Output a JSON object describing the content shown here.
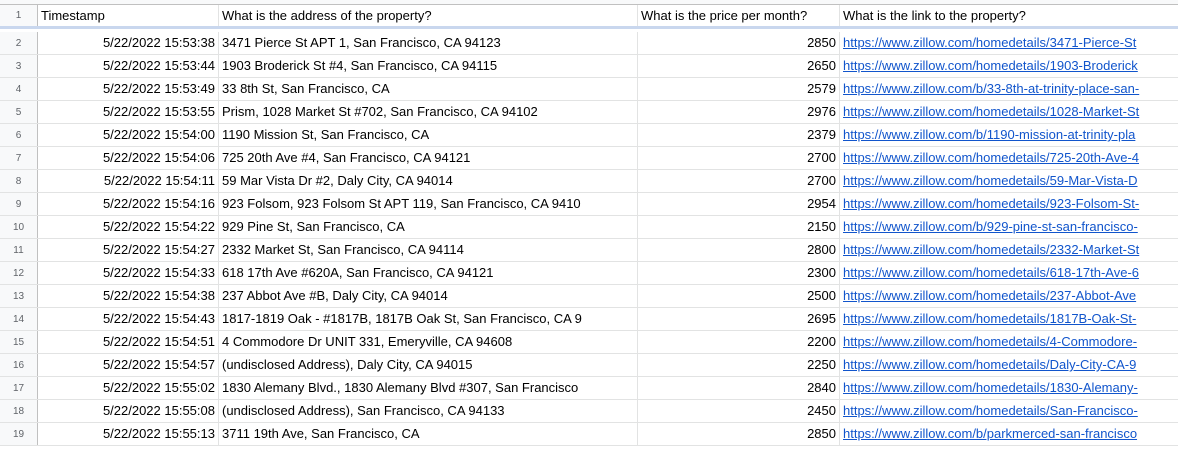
{
  "headers": [
    "Timestamp",
    "What is the address of the property?",
    "What is the price per month?",
    "What is the link to the property?"
  ],
  "header_row_number": "1",
  "rows": [
    {
      "num": "2",
      "timestamp": "5/22/2022 15:53:38",
      "address": "3471 Pierce St APT 1, San Francisco, CA 94123",
      "price": "2850",
      "link": "https://www.zillow.com/homedetails/3471-Pierce-St"
    },
    {
      "num": "3",
      "timestamp": "5/22/2022 15:53:44",
      "address": "1903 Broderick St #4, San Francisco, CA 94115",
      "price": "2650",
      "link": "https://www.zillow.com/homedetails/1903-Broderick"
    },
    {
      "num": "4",
      "timestamp": "5/22/2022 15:53:49",
      "address": "33 8th St, San Francisco, CA",
      "price": "2579",
      "link": "https://www.zillow.com/b/33-8th-at-trinity-place-san-"
    },
    {
      "num": "5",
      "timestamp": "5/22/2022 15:53:55",
      "address": "Prism, 1028 Market St #702, San Francisco, CA 94102",
      "price": "2976",
      "link": "https://www.zillow.com/homedetails/1028-Market-St"
    },
    {
      "num": "6",
      "timestamp": "5/22/2022 15:54:00",
      "address": "1190 Mission St, San Francisco, CA",
      "price": "2379",
      "link": "https://www.zillow.com/b/1190-mission-at-trinity-pla"
    },
    {
      "num": "7",
      "timestamp": "5/22/2022 15:54:06",
      "address": "725 20th Ave #4, San Francisco, CA 94121",
      "price": "2700",
      "link": "https://www.zillow.com/homedetails/725-20th-Ave-4"
    },
    {
      "num": "8",
      "timestamp": "5/22/2022 15:54:11",
      "address": "59 Mar Vista Dr #2, Daly City, CA 94014",
      "price": "2700",
      "link": "https://www.zillow.com/homedetails/59-Mar-Vista-D"
    },
    {
      "num": "9",
      "timestamp": "5/22/2022 15:54:16",
      "address": "923 Folsom, 923 Folsom St APT 119, San Francisco, CA 9410",
      "price": "2954",
      "link": "https://www.zillow.com/homedetails/923-Folsom-St-"
    },
    {
      "num": "10",
      "timestamp": "5/22/2022 15:54:22",
      "address": "929 Pine St, San Francisco, CA",
      "price": "2150",
      "link": "https://www.zillow.com/b/929-pine-st-san-francisco-"
    },
    {
      "num": "11",
      "timestamp": "5/22/2022 15:54:27",
      "address": "2332 Market St, San Francisco, CA 94114",
      "price": "2800",
      "link": "https://www.zillow.com/homedetails/2332-Market-St"
    },
    {
      "num": "12",
      "timestamp": "5/22/2022 15:54:33",
      "address": "618 17th Ave #620A, San Francisco, CA 94121",
      "price": "2300",
      "link": "https://www.zillow.com/homedetails/618-17th-Ave-6"
    },
    {
      "num": "13",
      "timestamp": "5/22/2022 15:54:38",
      "address": "237 Abbot Ave #B, Daly City, CA 94014",
      "price": "2500",
      "link": "https://www.zillow.com/homedetails/237-Abbot-Ave"
    },
    {
      "num": "14",
      "timestamp": "5/22/2022 15:54:43",
      "address": "1817-1819 Oak - #1817B, 1817B Oak St, San Francisco, CA 9",
      "price": "2695",
      "link": "https://www.zillow.com/homedetails/1817B-Oak-St-"
    },
    {
      "num": "15",
      "timestamp": "5/22/2022 15:54:51",
      "address": "4 Commodore Dr UNIT 331, Emeryville, CA 94608",
      "price": "2200",
      "link": "https://www.zillow.com/homedetails/4-Commodore-"
    },
    {
      "num": "16",
      "timestamp": "5/22/2022 15:54:57",
      "address": "(undisclosed Address), Daly City, CA 94015",
      "price": "2250",
      "link": "https://www.zillow.com/homedetails/Daly-City-CA-9"
    },
    {
      "num": "17",
      "timestamp": "5/22/2022 15:55:02",
      "address": "1830 Alemany Blvd., 1830 Alemany Blvd #307, San Francisco",
      "price": "2840",
      "link": "https://www.zillow.com/homedetails/1830-Alemany-"
    },
    {
      "num": "18",
      "timestamp": "5/22/2022 15:55:08",
      "address": "(undisclosed Address), San Francisco, CA 94133",
      "price": "2450",
      "link": "https://www.zillow.com/homedetails/San-Francisco-"
    },
    {
      "num": "19",
      "timestamp": "5/22/2022 15:55:13",
      "address": "3711 19th Ave, San Francisco, CA",
      "price": "2850",
      "link": "https://www.zillow.com/b/parkmerced-san-francisco"
    }
  ]
}
